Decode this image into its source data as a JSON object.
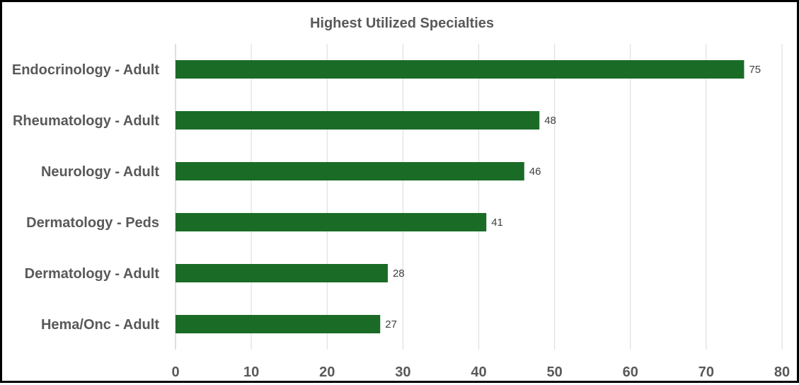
{
  "chart_data": {
    "type": "bar",
    "orientation": "horizontal",
    "title": "Highest Utilized Specialties",
    "categories": [
      "Endocrinology - Adult",
      "Rheumatology - Adult",
      "Neurology - Adult",
      "Dermatology - Peds",
      "Dermatology - Adult",
      "Hema/Onc - Adult"
    ],
    "values": [
      75,
      48,
      46,
      41,
      28,
      27
    ],
    "data_labels": [
      "75",
      "48",
      "46",
      "41",
      "28",
      "27"
    ],
    "xlim": [
      0,
      80
    ],
    "x_ticks": [
      0,
      10,
      20,
      30,
      40,
      50,
      60,
      70,
      80
    ],
    "x_tick_labels": [
      "0",
      "10",
      "20",
      "30",
      "40",
      "50",
      "60",
      "70",
      "80"
    ],
    "grid": "vertical",
    "legend": "none",
    "bar_color": "#1a6b26"
  }
}
